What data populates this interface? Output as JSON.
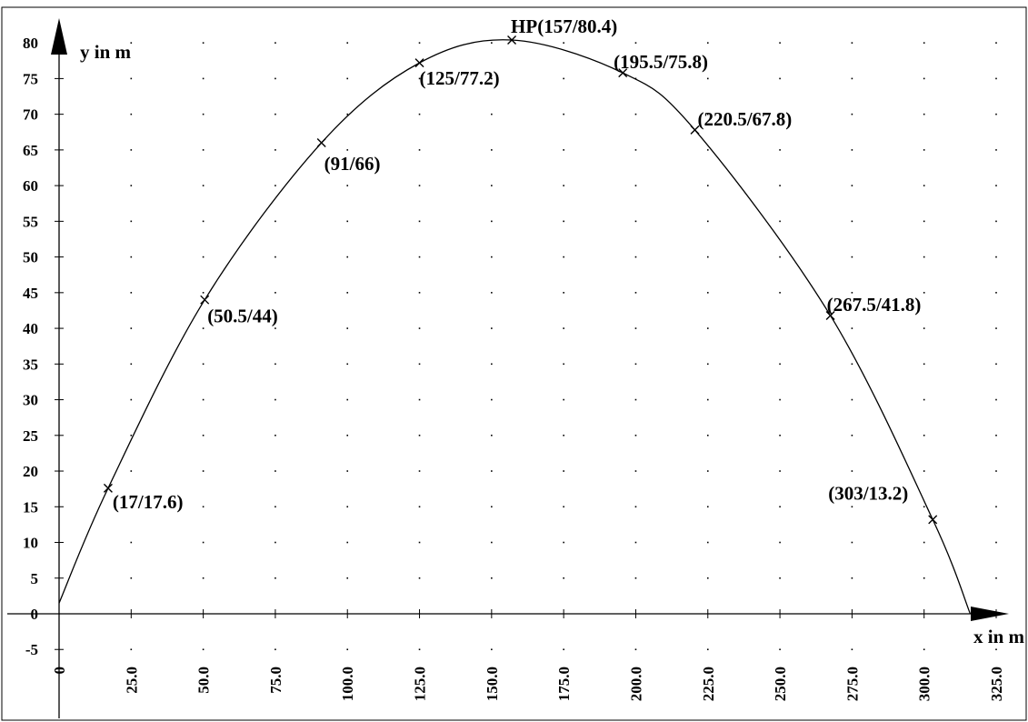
{
  "chart_data": {
    "type": "line",
    "xlabel": "x in m",
    "ylabel": "y in m",
    "xlim": [
      0,
      325
    ],
    "ylim": [
      -5,
      80
    ],
    "x_ticks": [
      "0",
      "25.0",
      "50.0",
      "75.0",
      "100.0",
      "125.0",
      "150.0",
      "175.0",
      "200.0",
      "225.0",
      "250.0",
      "275.0",
      "300.0",
      "325.0"
    ],
    "y_ticks": [
      "-5",
      "0",
      "5",
      "10",
      "15",
      "20",
      "25",
      "30",
      "35",
      "40",
      "45",
      "50",
      "55",
      "60",
      "65",
      "70",
      "75",
      "80"
    ],
    "grid": "dotted",
    "curve": {
      "x": [
        0,
        17,
        50.5,
        91,
        125,
        157,
        195.5,
        220.5,
        267.5,
        303,
        316
      ],
      "y": [
        1.5,
        17.6,
        44,
        66,
        77.2,
        80.4,
        75.8,
        67.8,
        41.8,
        13.2,
        0
      ]
    },
    "points": [
      {
        "x": 17,
        "y": 17.6,
        "label": "(17/17.6)"
      },
      {
        "x": 50.5,
        "y": 44,
        "label": "(50.5/44)"
      },
      {
        "x": 91,
        "y": 66,
        "label": "(91/66)"
      },
      {
        "x": 125,
        "y": 77.2,
        "label": "(125/77.2)"
      },
      {
        "x": 157,
        "y": 80.4,
        "label": "HP(157/80.4)"
      },
      {
        "x": 195.5,
        "y": 75.8,
        "label": "(195.5/75.8)"
      },
      {
        "x": 220.5,
        "y": 67.8,
        "label": "(220.5/67.8)"
      },
      {
        "x": 267.5,
        "y": 41.8,
        "label": "(267.5/41.8)"
      },
      {
        "x": 303,
        "y": 13.2,
        "label": "(303/13.2)"
      }
    ]
  }
}
